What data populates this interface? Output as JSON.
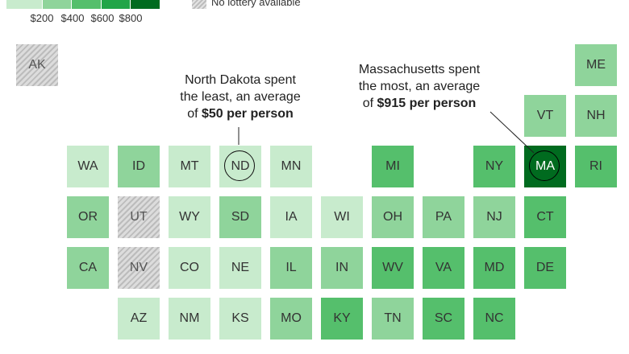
{
  "legend": {
    "ticks": [
      "$200",
      "$400",
      "$600",
      "$800"
    ],
    "no_lottery_label": "No lottery available",
    "colors": [
      "#c8ebcd",
      "#8fd49b",
      "#55bf6c",
      "#21a548",
      "#006b1f"
    ]
  },
  "annotations": {
    "nd": {
      "line1": "North Dakota spent",
      "line2": "the least, an average",
      "line3_prefix": "of ",
      "line3_bold": "$50 per person"
    },
    "ma": {
      "line1": "Massachusetts spent",
      "line2": "the most, an average",
      "line3_prefix": "of ",
      "line3_bold": "$915 per person"
    }
  },
  "states": [
    {
      "abbr": "AK",
      "col": 0,
      "row": 0,
      "level": "none"
    },
    {
      "abbr": "ME",
      "col": 11,
      "row": 0,
      "level": 2
    },
    {
      "abbr": "VT",
      "col": 10,
      "row": 1,
      "level": 2
    },
    {
      "abbr": "NH",
      "col": 11,
      "row": 1,
      "level": 2
    },
    {
      "abbr": "WA",
      "col": 1,
      "row": 2,
      "level": 1
    },
    {
      "abbr": "ID",
      "col": 2,
      "row": 2,
      "level": 2
    },
    {
      "abbr": "MT",
      "col": 3,
      "row": 2,
      "level": 1
    },
    {
      "abbr": "ND",
      "col": 4,
      "row": 2,
      "level": 1,
      "circled": true
    },
    {
      "abbr": "MN",
      "col": 5,
      "row": 2,
      "level": 1
    },
    {
      "abbr": "MI",
      "col": 7,
      "row": 2,
      "level": 3
    },
    {
      "abbr": "NY",
      "col": 9,
      "row": 2,
      "level": 3
    },
    {
      "abbr": "MA",
      "col": 10,
      "row": 2,
      "level": 5,
      "circled": true
    },
    {
      "abbr": "RI",
      "col": 11,
      "row": 2,
      "level": 3
    },
    {
      "abbr": "OR",
      "col": 1,
      "row": 3,
      "level": 2
    },
    {
      "abbr": "UT",
      "col": 2,
      "row": 3,
      "level": "none"
    },
    {
      "abbr": "WY",
      "col": 3,
      "row": 3,
      "level": 1
    },
    {
      "abbr": "SD",
      "col": 4,
      "row": 3,
      "level": 2
    },
    {
      "abbr": "IA",
      "col": 5,
      "row": 3,
      "level": 1
    },
    {
      "abbr": "WI",
      "col": 6,
      "row": 3,
      "level": 1
    },
    {
      "abbr": "OH",
      "col": 7,
      "row": 3,
      "level": 2
    },
    {
      "abbr": "PA",
      "col": 8,
      "row": 3,
      "level": 2
    },
    {
      "abbr": "NJ",
      "col": 9,
      "row": 3,
      "level": 2
    },
    {
      "abbr": "CT",
      "col": 10,
      "row": 3,
      "level": 3
    },
    {
      "abbr": "CA",
      "col": 1,
      "row": 4,
      "level": 2
    },
    {
      "abbr": "NV",
      "col": 2,
      "row": 4,
      "level": "none"
    },
    {
      "abbr": "CO",
      "col": 3,
      "row": 4,
      "level": 1
    },
    {
      "abbr": "NE",
      "col": 4,
      "row": 4,
      "level": 1
    },
    {
      "abbr": "IL",
      "col": 5,
      "row": 4,
      "level": 2
    },
    {
      "abbr": "IN",
      "col": 6,
      "row": 4,
      "level": 2
    },
    {
      "abbr": "WV",
      "col": 7,
      "row": 4,
      "level": 3
    },
    {
      "abbr": "VA",
      "col": 8,
      "row": 4,
      "level": 3
    },
    {
      "abbr": "MD",
      "col": 9,
      "row": 4,
      "level": 3
    },
    {
      "abbr": "DE",
      "col": 10,
      "row": 4,
      "level": 3
    },
    {
      "abbr": "AZ",
      "col": 2,
      "row": 5,
      "level": 1
    },
    {
      "abbr": "NM",
      "col": 3,
      "row": 5,
      "level": 1
    },
    {
      "abbr": "KS",
      "col": 4,
      "row": 5,
      "level": 1
    },
    {
      "abbr": "MO",
      "col": 5,
      "row": 5,
      "level": 2
    },
    {
      "abbr": "KY",
      "col": 6,
      "row": 5,
      "level": 3
    },
    {
      "abbr": "TN",
      "col": 7,
      "row": 5,
      "level": 2
    },
    {
      "abbr": "SC",
      "col": 8,
      "row": 5,
      "level": 3
    },
    {
      "abbr": "NC",
      "col": 9,
      "row": 5,
      "level": 3
    }
  ]
}
